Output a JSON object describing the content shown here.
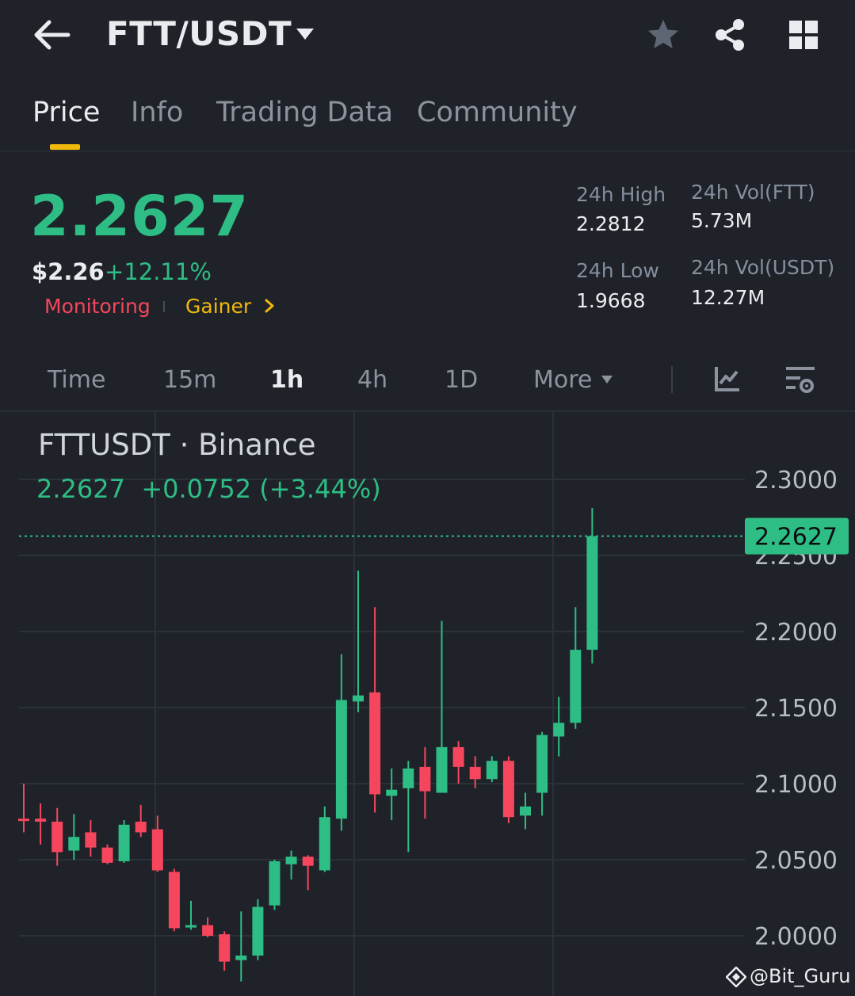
{
  "header": {
    "pair": "FTT/USDT",
    "icons": [
      "back-arrow-icon",
      "caret-down-icon",
      "star-icon",
      "share-icon",
      "grid-icon"
    ]
  },
  "tabs": [
    "Price",
    "Info",
    "Trading Data",
    "Community"
  ],
  "active_tab": "Price",
  "price": {
    "last": "2.2627",
    "usd": "$2.26",
    "change_pct": "+12.11%",
    "tags": [
      "Monitoring",
      "Gainer"
    ]
  },
  "stats": {
    "high_label": "24h High",
    "high_value": "2.2812",
    "low_label": "24h Low",
    "low_value": "1.9668",
    "vol_ftt_label": "24h Vol(FTT)",
    "vol_ftt_value": "5.73M",
    "vol_usdt_label": "24h Vol(USDT)",
    "vol_usdt_value": "12.27M"
  },
  "intervals": [
    "Time",
    "15m",
    "1h",
    "4h",
    "1D",
    "More"
  ],
  "active_interval": "1h",
  "chart_header": {
    "symbol": "FTTUSDT · Binance",
    "quote": "2.2627  +0.0752 (+3.44%)"
  },
  "chart_data": {
    "type": "candlestick",
    "y_ticks": [
      "2.3000",
      "2.2500",
      "2.2000",
      "2.1500",
      "2.1000",
      "2.0500",
      "2.0000"
    ],
    "ylim": [
      1.975,
      2.3
    ],
    "last_price_label": "2.2627",
    "last_price": 2.2627,
    "colors": {
      "up": "#2ebd85",
      "down": "#f6465d",
      "grid": "#2b3139",
      "last_line": "#2ebd85"
    },
    "candles": [
      {
        "o": 2.077,
        "c": 2.076,
        "h": 2.1,
        "l": 2.068
      },
      {
        "o": 2.077,
        "c": 2.075,
        "h": 2.087,
        "l": 2.06
      },
      {
        "o": 2.075,
        "c": 2.055,
        "h": 2.084,
        "l": 2.046
      },
      {
        "o": 2.056,
        "c": 2.065,
        "h": 2.08,
        "l": 2.05
      },
      {
        "o": 2.068,
        "c": 2.058,
        "h": 2.076,
        "l": 2.052
      },
      {
        "o": 2.058,
        "c": 2.048,
        "h": 2.06,
        "l": 2.047
      },
      {
        "o": 2.049,
        "c": 2.073,
        "h": 2.076,
        "l": 2.048
      },
      {
        "o": 2.075,
        "c": 2.068,
        "h": 2.086,
        "l": 2.065
      },
      {
        "o": 2.07,
        "c": 2.043,
        "h": 2.079,
        "l": 2.042
      },
      {
        "o": 2.042,
        "c": 2.005,
        "h": 2.044,
        "l": 2.003
      },
      {
        "o": 2.006,
        "c": 2.007,
        "h": 2.023,
        "l": 2.004
      },
      {
        "o": 2.007,
        "c": 2.0,
        "h": 2.012,
        "l": 1.999
      },
      {
        "o": 2.001,
        "c": 1.983,
        "h": 2.003,
        "l": 1.977
      },
      {
        "o": 1.984,
        "c": 1.987,
        "h": 2.016,
        "l": 1.97
      },
      {
        "o": 1.987,
        "c": 2.019,
        "h": 2.024,
        "l": 1.984
      },
      {
        "o": 2.02,
        "c": 2.049,
        "h": 2.05,
        "l": 2.017
      },
      {
        "o": 2.047,
        "c": 2.052,
        "h": 2.056,
        "l": 2.037
      },
      {
        "o": 2.052,
        "c": 2.046,
        "h": 2.053,
        "l": 2.03
      },
      {
        "o": 2.043,
        "c": 2.078,
        "h": 2.085,
        "l": 2.042
      },
      {
        "o": 2.077,
        "c": 2.155,
        "h": 2.185,
        "l": 2.069
      },
      {
        "o": 2.154,
        "c": 2.158,
        "h": 2.24,
        "l": 2.147
      },
      {
        "o": 2.16,
        "c": 2.093,
        "h": 2.216,
        "l": 2.081
      },
      {
        "o": 2.092,
        "c": 2.096,
        "h": 2.11,
        "l": 2.076
      },
      {
        "o": 2.097,
        "c": 2.11,
        "h": 2.115,
        "l": 2.055
      },
      {
        "o": 2.111,
        "c": 2.095,
        "h": 2.124,
        "l": 2.077
      },
      {
        "o": 2.094,
        "c": 2.124,
        "h": 2.207,
        "l": 2.094
      },
      {
        "o": 2.124,
        "c": 2.111,
        "h": 2.128,
        "l": 2.1
      },
      {
        "o": 2.111,
        "c": 2.103,
        "h": 2.118,
        "l": 2.097
      },
      {
        "o": 2.103,
        "c": 2.115,
        "h": 2.118,
        "l": 2.101
      },
      {
        "o": 2.115,
        "c": 2.078,
        "h": 2.118,
        "l": 2.074
      },
      {
        "o": 2.079,
        "c": 2.085,
        "h": 2.094,
        "l": 2.07
      },
      {
        "o": 2.094,
        "c": 2.132,
        "h": 2.134,
        "l": 2.079
      },
      {
        "o": 2.131,
        "c": 2.14,
        "h": 2.157,
        "l": 2.118
      },
      {
        "o": 2.14,
        "c": 2.188,
        "h": 2.216,
        "l": 2.136
      },
      {
        "o": 2.188,
        "c": 2.2627,
        "h": 2.2812,
        "l": 2.179
      }
    ]
  },
  "watermark": "@Bit_Guru"
}
